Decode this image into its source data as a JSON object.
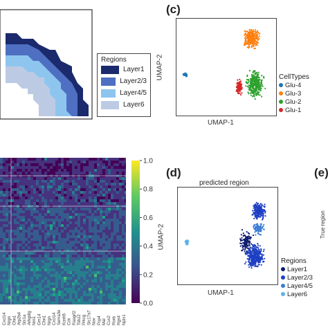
{
  "panel_c": {
    "label": "(c)",
    "xlabel": "UMAP-1",
    "ylabel": "UMAP-2",
    "legend": {
      "title": "CellTypes",
      "items": [
        {
          "label": "Glu-4",
          "color": "#1f77b4"
        },
        {
          "label": "Glu-3",
          "color": "#ff7f0e"
        },
        {
          "label": "Glu-2",
          "color": "#2ca02c"
        },
        {
          "label": "Glu-1",
          "color": "#d62728"
        }
      ]
    }
  },
  "panel_d": {
    "label": "(d)",
    "title": "predicted region",
    "xlabel": "UMAP-1",
    "ylabel": "UMAP-2",
    "legend": {
      "title": "Regions",
      "items": [
        {
          "label": "Layer1",
          "color": "#0b1a6e"
        },
        {
          "label": "Layer2/3",
          "color": "#1d3fc4"
        },
        {
          "label": "Layer4/5",
          "color": "#3a7bd5"
        },
        {
          "label": "Layer6",
          "color": "#5ab4e8"
        }
      ]
    }
  },
  "panel_e": {
    "label": "(e)",
    "ylabel_partial": "True region"
  },
  "panel_a": {
    "legend": {
      "title": "Regions",
      "items": [
        {
          "label": "Layer1",
          "color": "#1a2a6c"
        },
        {
          "label": "Layer2/3",
          "color": "#4e6fc2"
        },
        {
          "label": "Layer4/5",
          "color": "#8ec5ef"
        },
        {
          "label": "Layer6",
          "color": "#bccbe3"
        }
      ]
    }
  },
  "heatmap": {
    "colorbar": {
      "ticks": [
        "1.0",
        "0.8",
        "0.6",
        "0.4",
        "0.2",
        "0.0"
      ],
      "colors": [
        "#fde725",
        "#5ec962",
        "#21918c",
        "#3b528b",
        "#440154"
      ]
    },
    "gene_labels": [
      "Cxcl14",
      "Nrgn",
      "Chn1",
      "Atp2b4",
      "Stx1a",
      "Arhgdig",
      "Nrn1",
      "Gm14",
      "Chn1",
      "Nrgn",
      "Cxcl14",
      "Sema3e",
      "Kcnh5",
      "Cck",
      "Rasgrf2",
      "Tshz2",
      "Prkcg",
      "Slc17a7",
      "Nov",
      "Pcp4",
      "Mal",
      "Cux2",
      "Rorb",
      "Rgs4",
      "Nptx1"
    ]
  }
}
